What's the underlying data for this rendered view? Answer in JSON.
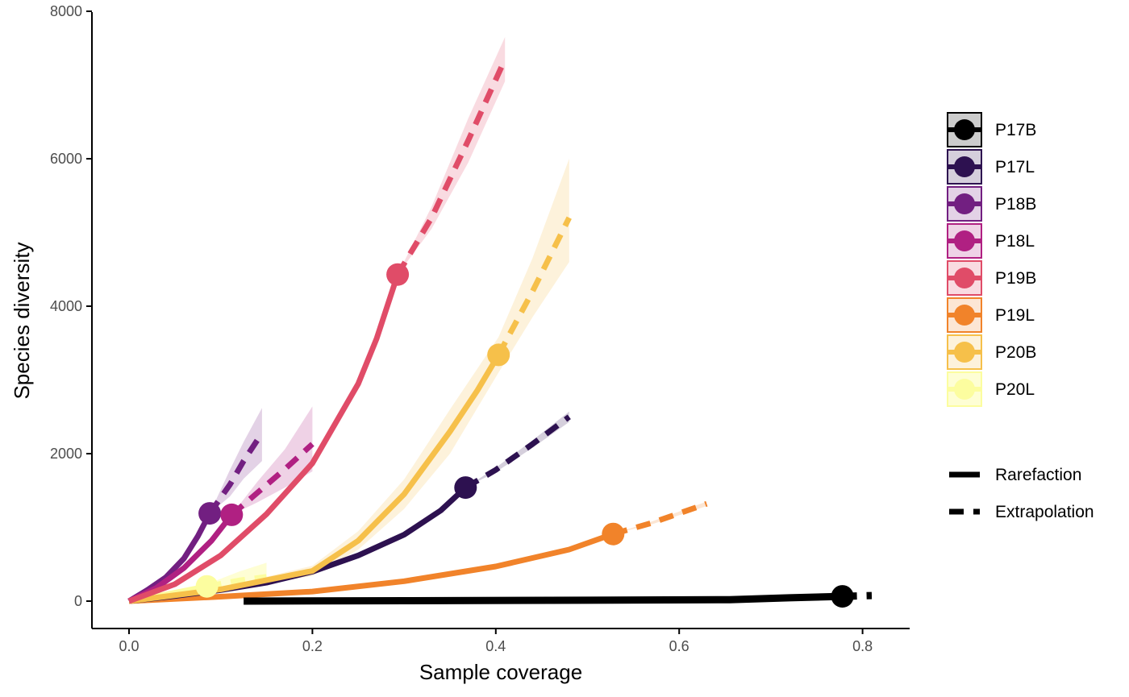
{
  "chart_data": {
    "type": "line",
    "title": "",
    "xlabel": "Sample coverage",
    "ylabel": "Species diversity",
    "xlim": [
      -0.05,
      0.85
    ],
    "ylim": [
      -380,
      8000
    ],
    "x_ticks": [
      0.0,
      0.2,
      0.4,
      0.6,
      0.8
    ],
    "x_tick_labels": [
      "0.0",
      "0.2",
      "0.4",
      "0.6",
      "0.8"
    ],
    "y_ticks": [
      0,
      2000,
      4000,
      6000,
      8000
    ],
    "y_tick_labels": [
      "0",
      "2000",
      "4000",
      "6000",
      "8000"
    ],
    "grid": false,
    "legend_placement": "right",
    "line_types": [
      {
        "name": "Rarefaction",
        "style": "solid"
      },
      {
        "name": "Extrapolation",
        "style": "dashed"
      }
    ],
    "series": [
      {
        "name": "P17B",
        "color": "#000000",
        "rarefaction": [
          [
            0.125,
            0
          ],
          [
            0.3,
            5
          ],
          [
            0.5,
            12
          ],
          [
            0.655,
            20
          ],
          [
            0.72,
            45
          ],
          [
            0.778,
            65
          ]
        ],
        "extrapolation": [
          [
            0.778,
            65
          ],
          [
            0.81,
            75
          ]
        ],
        "observed": [
          0.778,
          65
        ],
        "ci": []
      },
      {
        "name": "P17L",
        "color": "#2d1150",
        "rarefaction": [
          [
            0.0,
            0
          ],
          [
            0.05,
            70
          ],
          [
            0.1,
            150
          ],
          [
            0.15,
            250
          ],
          [
            0.2,
            400
          ],
          [
            0.25,
            620
          ],
          [
            0.3,
            900
          ],
          [
            0.34,
            1230
          ],
          [
            0.367,
            1540
          ]
        ],
        "extrapolation": [
          [
            0.367,
            1540
          ],
          [
            0.4,
            1780
          ],
          [
            0.44,
            2130
          ],
          [
            0.48,
            2500
          ]
        ],
        "observed": [
          0.367,
          1540
        ],
        "ci": [
          [
            0.367,
            1540,
            1540
          ],
          [
            0.4,
            1750,
            1810
          ],
          [
            0.44,
            2080,
            2180
          ],
          [
            0.48,
            2430,
            2570
          ]
        ]
      },
      {
        "name": "P18B",
        "color": "#721f81",
        "rarefaction": [
          [
            0.0,
            0
          ],
          [
            0.02,
            150
          ],
          [
            0.04,
            320
          ],
          [
            0.06,
            580
          ],
          [
            0.075,
            880
          ],
          [
            0.088,
            1190
          ]
        ],
        "extrapolation": [
          [
            0.088,
            1190
          ],
          [
            0.11,
            1580
          ],
          [
            0.125,
            1900
          ],
          [
            0.145,
            2280
          ]
        ],
        "observed": [
          0.088,
          1190
        ],
        "ci": [
          [
            0.088,
            1190,
            1190
          ],
          [
            0.11,
            1420,
            1780
          ],
          [
            0.125,
            1660,
            2160
          ],
          [
            0.145,
            1900,
            2620
          ]
        ]
      },
      {
        "name": "P18L",
        "color": "#b02082",
        "rarefaction": [
          [
            0.0,
            0
          ],
          [
            0.03,
            180
          ],
          [
            0.06,
            450
          ],
          [
            0.09,
            820
          ],
          [
            0.112,
            1170
          ]
        ],
        "extrapolation": [
          [
            0.112,
            1170
          ],
          [
            0.14,
            1470
          ],
          [
            0.17,
            1790
          ],
          [
            0.2,
            2130
          ]
        ],
        "observed": [
          0.112,
          1170
        ],
        "ci": [
          [
            0.112,
            1170,
            1170
          ],
          [
            0.14,
            1340,
            1620
          ],
          [
            0.17,
            1540,
            2060
          ],
          [
            0.2,
            1760,
            2640
          ]
        ]
      },
      {
        "name": "P19B",
        "color": "#e04c68",
        "rarefaction": [
          [
            0.0,
            0
          ],
          [
            0.05,
            230
          ],
          [
            0.1,
            620
          ],
          [
            0.15,
            1180
          ],
          [
            0.2,
            1870
          ],
          [
            0.25,
            2950
          ],
          [
            0.27,
            3560
          ],
          [
            0.293,
            4430
          ]
        ],
        "extrapolation": [
          [
            0.293,
            4430
          ],
          [
            0.33,
            5200
          ],
          [
            0.37,
            6250
          ],
          [
            0.41,
            7350
          ]
        ],
        "observed": [
          0.293,
          4430
        ],
        "ci": [
          [
            0.293,
            4430,
            4430
          ],
          [
            0.33,
            5050,
            5350
          ],
          [
            0.37,
            5950,
            6550
          ],
          [
            0.41,
            7050,
            7650
          ]
        ]
      },
      {
        "name": "P19L",
        "color": "#f1832a",
        "rarefaction": [
          [
            0.0,
            0
          ],
          [
            0.1,
            60
          ],
          [
            0.2,
            130
          ],
          [
            0.3,
            270
          ],
          [
            0.4,
            470
          ],
          [
            0.48,
            700
          ],
          [
            0.528,
            910
          ]
        ],
        "extrapolation": [
          [
            0.528,
            910
          ],
          [
            0.57,
            1060
          ],
          [
            0.63,
            1320
          ]
        ],
        "observed": [
          0.528,
          910
        ],
        "ci": [
          [
            0.528,
            910,
            910
          ],
          [
            0.57,
            1040,
            1080
          ],
          [
            0.63,
            1290,
            1350
          ]
        ]
      },
      {
        "name": "P20B",
        "color": "#f6c04a",
        "rarefaction": [
          [
            0.0,
            0
          ],
          [
            0.1,
            160
          ],
          [
            0.2,
            410
          ],
          [
            0.25,
            820
          ],
          [
            0.3,
            1450
          ],
          [
            0.35,
            2300
          ],
          [
            0.38,
            2860
          ],
          [
            0.403,
            3340
          ]
        ],
        "extrapolation": [
          [
            0.403,
            3340
          ],
          [
            0.44,
            4200
          ],
          [
            0.48,
            5200
          ]
        ],
        "observed": [
          0.403,
          3340
        ],
        "ci": [
          [
            0.0,
            0,
            0
          ],
          [
            0.1,
            140,
            180
          ],
          [
            0.2,
            340,
            480
          ],
          [
            0.25,
            700,
            950
          ],
          [
            0.3,
            1250,
            1650
          ],
          [
            0.35,
            2000,
            2600
          ],
          [
            0.403,
            3100,
            3580
          ],
          [
            0.44,
            3850,
            4650
          ],
          [
            0.48,
            4600,
            6000
          ]
        ]
      },
      {
        "name": "P20L",
        "color": "#fcfd9f",
        "rarefaction": [
          [
            0.0,
            0
          ],
          [
            0.04,
            90
          ],
          [
            0.085,
            200
          ]
        ],
        "extrapolation": [
          [
            0.085,
            200
          ],
          [
            0.12,
            280
          ],
          [
            0.15,
            330
          ]
        ],
        "observed": [
          0.085,
          200
        ],
        "ci": [
          [
            0.0,
            0,
            0
          ],
          [
            0.085,
            170,
            230
          ],
          [
            0.12,
            230,
            400
          ],
          [
            0.15,
            250,
            520
          ]
        ]
      }
    ]
  }
}
